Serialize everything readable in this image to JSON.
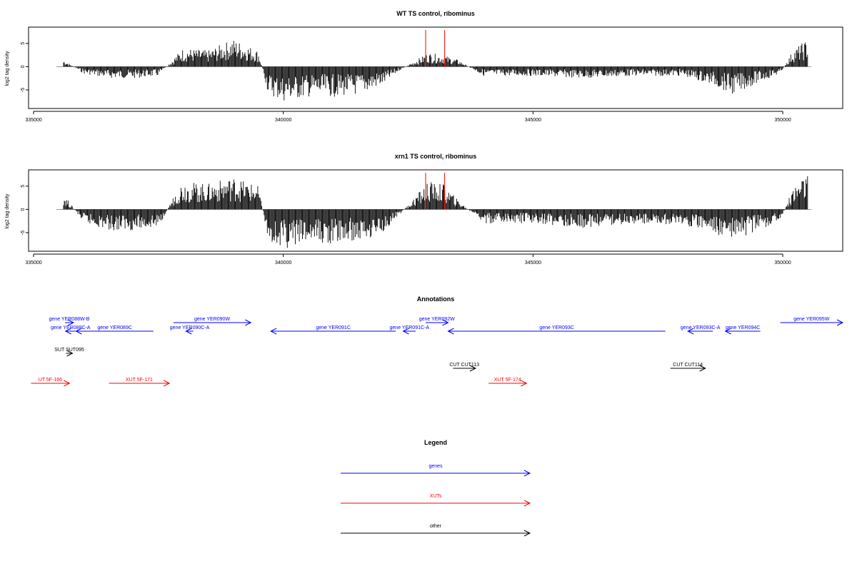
{
  "panels": [
    {
      "id": "wt",
      "title": "WT TS control, ribominus",
      "ylabel": "log2 tag density",
      "yticks": [
        "-5",
        "0",
        "5"
      ],
      "xticks": [
        "335000",
        "340000",
        "345000",
        "350000"
      ]
    },
    {
      "id": "xrn1",
      "title": "xrn1 TS control, ribominus",
      "ylabel": "log2 tag density",
      "yticks": [
        "-5",
        "0",
        "5"
      ],
      "xticks": [
        "335000",
        "340000",
        "345000",
        "350000"
      ]
    }
  ],
  "annotations": {
    "title": "Annotations",
    "items": [
      {
        "label": "gene YER088W-B",
        "cat": "gene",
        "strand": "+",
        "start": 335630,
        "end": 335800
      },
      {
        "label": "gene YER088C-A",
        "cat": "gene",
        "strand": "-",
        "start": 335640,
        "end": 335840
      },
      {
        "label": "gene YER089C",
        "cat": "gene",
        "strand": "-",
        "start": 335850,
        "end": 337400
      },
      {
        "label": "gene YER090W",
        "cat": "gene",
        "strand": "+",
        "start": 337800,
        "end": 339350
      },
      {
        "label": "gene YER090C-A",
        "cat": "gene",
        "strand": "-",
        "start": 338050,
        "end": 338200
      },
      {
        "label": "gene YER091C",
        "cat": "gene",
        "strand": "-",
        "start": 339750,
        "end": 342250
      },
      {
        "label": "gene YER091C-A",
        "cat": "gene",
        "strand": "-",
        "start": 342400,
        "end": 342650
      },
      {
        "label": "gene YER092W",
        "cat": "gene",
        "strand": "+",
        "start": 342850,
        "end": 343300
      },
      {
        "label": "gene YER093C",
        "cat": "gene",
        "strand": "-",
        "start": 343300,
        "end": 347650
      },
      {
        "label": "gene YER093C-A",
        "cat": "gene",
        "strand": "-",
        "start": 348100,
        "end": 348600
      },
      {
        "label": "gene YER094C",
        "cat": "gene",
        "strand": "-",
        "start": 348850,
        "end": 349550
      },
      {
        "label": "gene YER095W",
        "cat": "gene",
        "strand": "+",
        "start": 349950,
        "end": 351200
      },
      {
        "label": "SUT SUT095",
        "cat": "other",
        "strand": "+",
        "start": 335650,
        "end": 335780
      },
      {
        "label": "CUT CUT113",
        "cat": "other",
        "strand": "+",
        "start": 343400,
        "end": 343850
      },
      {
        "label": "CUT CUT114",
        "cat": "other",
        "strand": "+",
        "start": 347750,
        "end": 348450
      },
      {
        "label": "UT 5F-166",
        "cat": "xut",
        "strand": "+",
        "start": 334950,
        "end": 335720
      },
      {
        "label": "XUT 5F-171",
        "cat": "xut",
        "strand": "+",
        "start": 336510,
        "end": 337720
      },
      {
        "label": "XUT 5F-174",
        "cat": "xut",
        "strand": "+",
        "start": 344110,
        "end": 344870
      }
    ]
  },
  "legend": {
    "title": "Legend",
    "entries": [
      {
        "label": "genes",
        "color": "#0000ff"
      },
      {
        "label": "XUTs",
        "color": "#ff0000"
      },
      {
        "label": "other",
        "color": "#000000"
      }
    ]
  },
  "colors": {
    "gene": "#0000ff",
    "xut": "#ff0000",
    "other": "#000000",
    "marker": "#ff0000",
    "density": "#000000",
    "axis": "#000000"
  },
  "chart_data": [
    {
      "type": "bar",
      "title": "WT TS control, ribominus",
      "ylabel": "log2 tag density",
      "xlim": [
        334900,
        351200
      ],
      "ylim": [
        -9,
        8.5
      ],
      "markers_x": [
        342850,
        343230
      ],
      "series": [
        {
          "x": [
            335600,
            336000,
            336500,
            337000,
            337500,
            337900,
            338000,
            338500,
            339000,
            339500,
            339700,
            340000,
            340500,
            341000,
            341500,
            342000,
            342300,
            342900,
            343200,
            343500,
            344000,
            345000,
            346000,
            347000,
            348000,
            348600,
            349000,
            349500,
            349950,
            350200,
            350500
          ],
          "values": [
            1.5,
            -1.5,
            -2.5,
            -2.5,
            -2.0,
            3.0,
            4.0,
            3.5,
            6.0,
            3.5,
            -6.0,
            -7.5,
            -6.5,
            -6.5,
            -6.0,
            -4.0,
            -1.0,
            3.0,
            2.5,
            1.5,
            -2.0,
            -2.0,
            -2.5,
            -2.0,
            -2.0,
            -4.0,
            -6.0,
            -3.5,
            -1.5,
            3.5,
            6.0
          ]
        }
      ]
    },
    {
      "type": "bar",
      "title": "xrn1 TS control, ribominus",
      "ylabel": "log2 tag density",
      "xlim": [
        334900,
        351200
      ],
      "ylim": [
        -9,
        8.5
      ],
      "markers_x": [
        342850,
        343230
      ],
      "series": [
        {
          "x": [
            335600,
            336000,
            336500,
            337000,
            337500,
            337900,
            338000,
            338500,
            339000,
            339500,
            339700,
            340000,
            340500,
            341000,
            341500,
            342000,
            342300,
            342900,
            343200,
            343500,
            344000,
            345000,
            346000,
            347000,
            348000,
            348600,
            349000,
            349500,
            349950,
            350200,
            350500
          ],
          "values": [
            3.5,
            -3.0,
            -4.5,
            -4.5,
            -4.0,
            5.0,
            6.0,
            5.5,
            7.0,
            5.0,
            -7.0,
            -8.5,
            -7.5,
            -7.5,
            -7.0,
            -5.0,
            -1.5,
            6.0,
            5.5,
            2.0,
            -3.0,
            -3.0,
            -4.0,
            -3.0,
            -3.5,
            -5.0,
            -7.0,
            -4.5,
            -2.5,
            4.5,
            8.0
          ]
        }
      ]
    }
  ]
}
